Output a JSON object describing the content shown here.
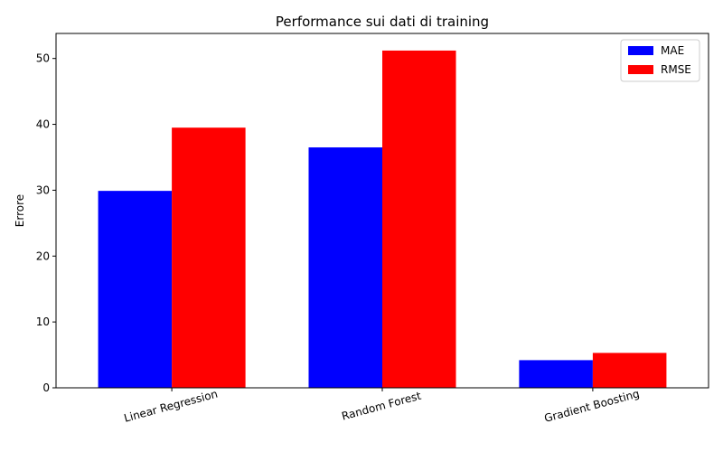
{
  "chart_data": {
    "type": "bar",
    "title": "Performance sui dati di training",
    "xlabel": "",
    "ylabel": "Errore",
    "categories": [
      "Linear Regression",
      "Random Forest",
      "Gradient Boosting"
    ],
    "series": [
      {
        "name": "MAE",
        "color": "#0000ff",
        "values": [
          29.9,
          36.5,
          4.2
        ]
      },
      {
        "name": "RMSE",
        "color": "#ff0000",
        "values": [
          39.5,
          51.2,
          5.3
        ]
      }
    ],
    "yticks": [
      0,
      10,
      20,
      30,
      40,
      50
    ],
    "ylim": [
      0,
      53.8
    ],
    "grid": false,
    "legend_position": "top-right",
    "xtick_rotation_deg": 15
  }
}
